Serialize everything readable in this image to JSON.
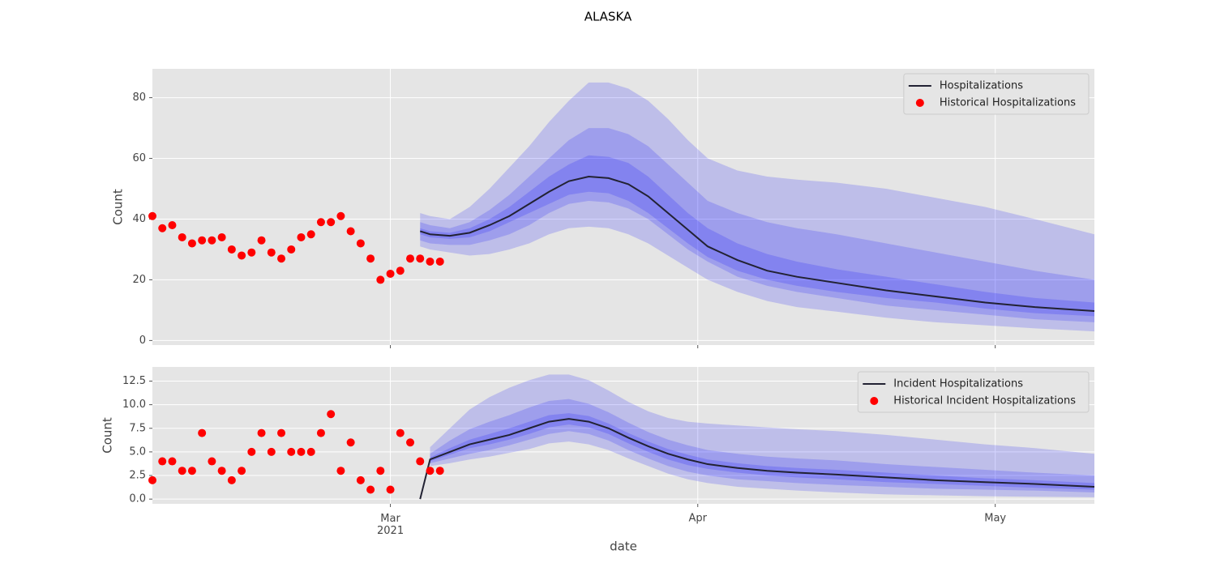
{
  "title": "ALASKA",
  "chart_data": [
    {
      "type": "line",
      "ylabel": "Count",
      "grid": true,
      "legend": "upper right",
      "background": "#e5e5e5",
      "xlim": [
        36,
        131
      ],
      "xticks": [
        60,
        91,
        121
      ],
      "show_xtick_labels": false,
      "ylim": [
        -1.5,
        89.5
      ],
      "yticks": [
        0,
        20,
        40,
        60,
        80
      ],
      "x": [
        63,
        64,
        66,
        68,
        70,
        72,
        74,
        76,
        78,
        80,
        82,
        84,
        86,
        88,
        90,
        92,
        95,
        98,
        101,
        105,
        110,
        115,
        120,
        125,
        131
      ],
      "series": [
        {
          "name": "Hospitalizations",
          "type": "line",
          "color": "#222233",
          "values": [
            36,
            35,
            34.5,
            35.5,
            38,
            41,
            45,
            49,
            52.5,
            54,
            53.5,
            51.5,
            47.5,
            42,
            36.5,
            31,
            26.5,
            23,
            21,
            19,
            16.5,
            14.5,
            12.5,
            11,
            9.7
          ],
          "band_color": "#0000ff",
          "bands": [
            {
              "upper": [
                42,
                41,
                40,
                44,
                50,
                57,
                64,
                72,
                79,
                85,
                85,
                83,
                79,
                73,
                66,
                60,
                56,
                54,
                53,
                52,
                50,
                47,
                44,
                40,
                35
              ],
              "lower": [
                31,
                30,
                29,
                28,
                28.5,
                30,
                32,
                35,
                37,
                37.5,
                37,
                35,
                32,
                28,
                24,
                20,
                16,
                13,
                11,
                9.5,
                7.5,
                6,
                5,
                4,
                3
              ]
            },
            {
              "upper": [
                39,
                38,
                37,
                39,
                43,
                48,
                54,
                60,
                66,
                70,
                70,
                68,
                64,
                58,
                52,
                46,
                42,
                39,
                37,
                35,
                32,
                29,
                26,
                23,
                20
              ],
              "lower": [
                33,
                32,
                31.5,
                31.5,
                33,
                35,
                38,
                42,
                45,
                46,
                45.5,
                43.5,
                40,
                35,
                30,
                26,
                21,
                18,
                16,
                14,
                11.5,
                10,
                8.5,
                7,
                6
              ]
            },
            {
              "upper": [
                37,
                36,
                35.5,
                37,
                40,
                44,
                49,
                54,
                58,
                61,
                60.5,
                58.5,
                54,
                48,
                42,
                37,
                32,
                28.5,
                26,
                23.5,
                21,
                18.5,
                16,
                14,
                12.5
              ],
              "lower": [
                35,
                34,
                33.5,
                34,
                36,
                39,
                42,
                45,
                48,
                49,
                48.5,
                46,
                42,
                37,
                32,
                27.5,
                23,
                20,
                18,
                16,
                14,
                12.5,
                10.5,
                9,
                8
              ]
            }
          ]
        },
        {
          "name": "Historical Hospitalizations",
          "type": "scatter",
          "color": "#ff0000",
          "x": [
            36,
            37,
            38,
            39,
            40,
            41,
            42,
            43,
            44,
            45,
            46,
            47,
            48,
            49,
            50,
            51,
            52,
            53,
            54,
            55,
            56,
            57,
            58,
            59,
            60,
            61,
            62,
            63,
            64,
            65
          ],
          "values": [
            41,
            37,
            38,
            34,
            32,
            33,
            33,
            34,
            30,
            28,
            29,
            33,
            29,
            27,
            30,
            34,
            35,
            39,
            39,
            41,
            36,
            32,
            27,
            20,
            22,
            23,
            27,
            27,
            26,
            26
          ]
        }
      ]
    },
    {
      "type": "line",
      "ylabel": "Count",
      "xlabel": "date",
      "grid": true,
      "legend": "upper right",
      "background": "#e5e5e5",
      "xlim": [
        36,
        131
      ],
      "xticks": [
        {
          "value": 60,
          "label": "Mar\n2021"
        },
        {
          "value": 91,
          "label": "Apr"
        },
        {
          "value": 121,
          "label": "May"
        }
      ],
      "show_xtick_labels": true,
      "ylim": [
        -0.5,
        14
      ],
      "yticks": [
        {
          "value": 0,
          "label": "0.0"
        },
        2.5,
        {
          "value": 5,
          "label": "5.0"
        },
        7.5,
        {
          "value": 10,
          "label": "10.0"
        },
        12.5
      ],
      "x": [
        63,
        64,
        66,
        68,
        70,
        72,
        74,
        76,
        78,
        80,
        82,
        84,
        86,
        88,
        90,
        92,
        95,
        98,
        101,
        105,
        110,
        115,
        120,
        125,
        131
      ],
      "series": [
        {
          "name": "Incident Hospitalizations",
          "type": "line",
          "color": "#222233",
          "values": [
            0,
            4.2,
            5,
            5.8,
            6.3,
            6.8,
            7.5,
            8.2,
            8.5,
            8.2,
            7.5,
            6.5,
            5.6,
            4.8,
            4.2,
            3.7,
            3.3,
            3,
            2.8,
            2.6,
            2.3,
            2,
            1.8,
            1.6,
            1.3
          ],
          "band_color": "#0000ff",
          "bands": [
            {
              "upper": [
                null,
                5.5,
                7.5,
                9.5,
                10.8,
                11.8,
                12.6,
                13.2,
                13.2,
                12.6,
                11.5,
                10.3,
                9.3,
                8.6,
                8.2,
                8,
                7.8,
                7.6,
                7.4,
                7.2,
                6.8,
                6.3,
                5.8,
                5.4,
                4.8
              ],
              "lower": [
                null,
                3.5,
                3.8,
                4.2,
                4.5,
                4.9,
                5.3,
                5.9,
                6.1,
                5.8,
                5.2,
                4.3,
                3.5,
                2.7,
                2.1,
                1.7,
                1.3,
                1.1,
                0.9,
                0.7,
                0.5,
                0.4,
                0.3,
                0.25,
                0.2
              ]
            },
            {
              "upper": [
                null,
                4.8,
                6.2,
                7.4,
                8.2,
                8.9,
                9.7,
                10.4,
                10.6,
                10.1,
                9.2,
                8.1,
                7.1,
                6.3,
                5.7,
                5.2,
                4.8,
                4.5,
                4.3,
                4.1,
                3.7,
                3.4,
                3.1,
                2.8,
                2.5
              ],
              "lower": [
                null,
                3.8,
                4.3,
                4.8,
                5.2,
                5.7,
                6.3,
                6.9,
                7.2,
                6.9,
                6.2,
                5.2,
                4.3,
                3.5,
                2.9,
                2.5,
                2.1,
                1.9,
                1.7,
                1.5,
                1.3,
                1.1,
                1,
                0.9,
                0.7
              ]
            },
            {
              "upper": [
                null,
                4.4,
                5.4,
                6.3,
                6.9,
                7.5,
                8.2,
                8.9,
                9.1,
                8.8,
                8,
                7,
                6.1,
                5.3,
                4.7,
                4.2,
                3.8,
                3.5,
                3.3,
                3.1,
                2.8,
                2.5,
                2.2,
                2,
                1.7
              ],
              "lower": [
                null,
                4,
                4.7,
                5.4,
                5.8,
                6.3,
                6.9,
                7.6,
                7.9,
                7.6,
                6.9,
                5.9,
                5,
                4.2,
                3.6,
                3.2,
                2.8,
                2.5,
                2.3,
                2.1,
                1.8,
                1.6,
                1.4,
                1.2,
                1
              ]
            }
          ]
        },
        {
          "name": "Historical Incident Hospitalizations",
          "type": "scatter",
          "color": "#ff0000",
          "x": [
            36,
            37,
            38,
            39,
            40,
            41,
            42,
            43,
            44,
            45,
            46,
            47,
            48,
            49,
            50,
            51,
            52,
            53,
            54,
            55,
            56,
            57,
            58,
            59,
            60,
            61,
            62,
            63,
            64,
            65
          ],
          "values": [
            2,
            4,
            4,
            3,
            3,
            7,
            4,
            3,
            2,
            3,
            5,
            7,
            5,
            7,
            5,
            5,
            5,
            7,
            9,
            3,
            6,
            2,
            1,
            3,
            1,
            7,
            6,
            4,
            3,
            3
          ]
        }
      ]
    }
  ]
}
